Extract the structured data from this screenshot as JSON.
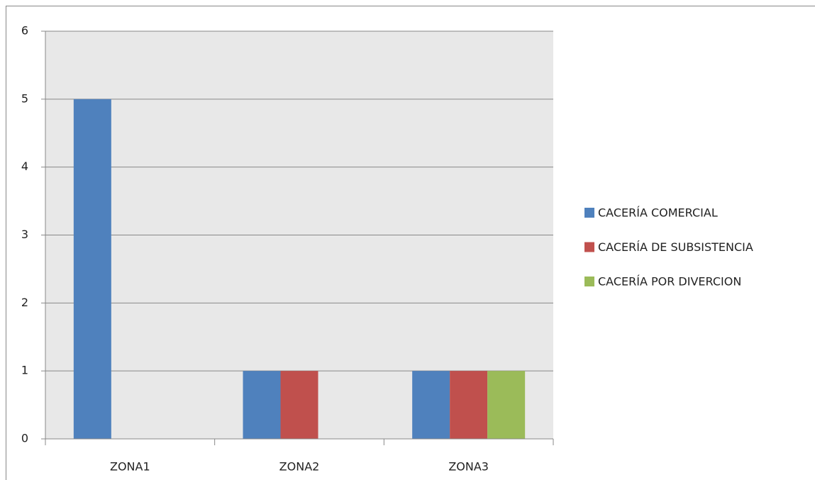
{
  "chart_data": {
    "type": "bar",
    "categories": [
      "ZONA1",
      "ZONA2",
      "ZONA3"
    ],
    "series": [
      {
        "name": "CACERÍA COMERCIAL",
        "color": "#4f81bd",
        "values": [
          5,
          1,
          1
        ]
      },
      {
        "name": "CACERÍA DE SUBSISTENCIA",
        "color": "#c0504d",
        "values": [
          0,
          1,
          1
        ]
      },
      {
        "name": "CACERÍA POR DIVERCION",
        "color": "#9bbb59",
        "values": [
          0,
          0,
          1
        ]
      }
    ],
    "ylim": [
      0,
      6
    ],
    "yticks": [
      0,
      1,
      2,
      3,
      4,
      5,
      6
    ],
    "grid": true,
    "legend": "right"
  }
}
